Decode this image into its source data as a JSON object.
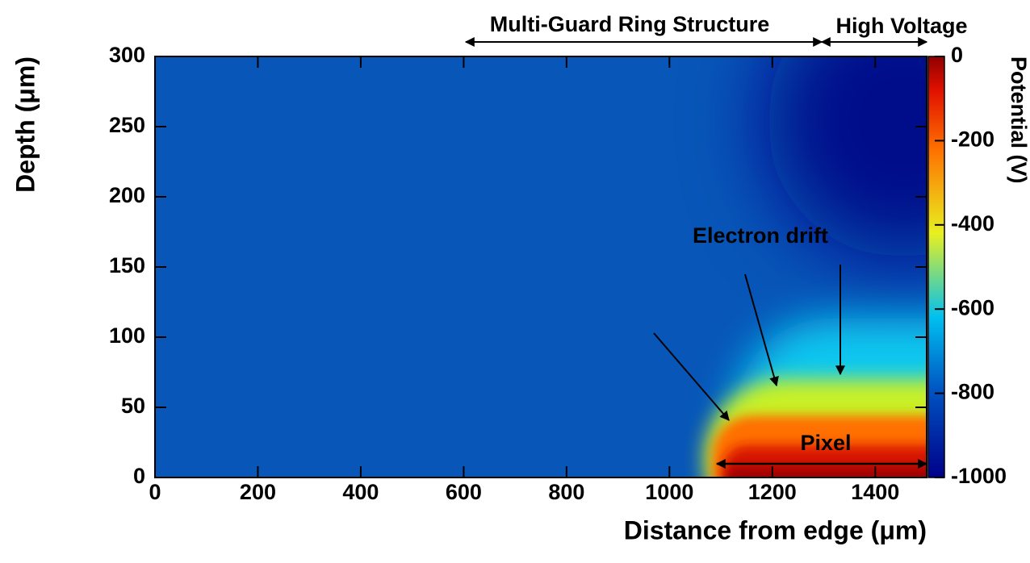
{
  "chart_data": {
    "type": "heatmap",
    "xlabel": "Distance from edge (μm)",
    "ylabel": "Depth (μm)",
    "colorbar_label": "Potential (V)",
    "xlim": [
      0,
      1500
    ],
    "xticks": [
      0,
      200,
      400,
      600,
      800,
      1000,
      1200,
      1400
    ],
    "ylim": [
      0,
      300
    ],
    "yticks": [
      0,
      50,
      100,
      150,
      200,
      250,
      300
    ],
    "zlim": [
      -1000,
      0
    ],
    "zticks": [
      0,
      -200,
      -400,
      -600,
      -800,
      -1000
    ],
    "annotations": [
      "Multi-Guard Ring Structure",
      "High Voltage",
      "Electron drift",
      "Pixel"
    ]
  }
}
